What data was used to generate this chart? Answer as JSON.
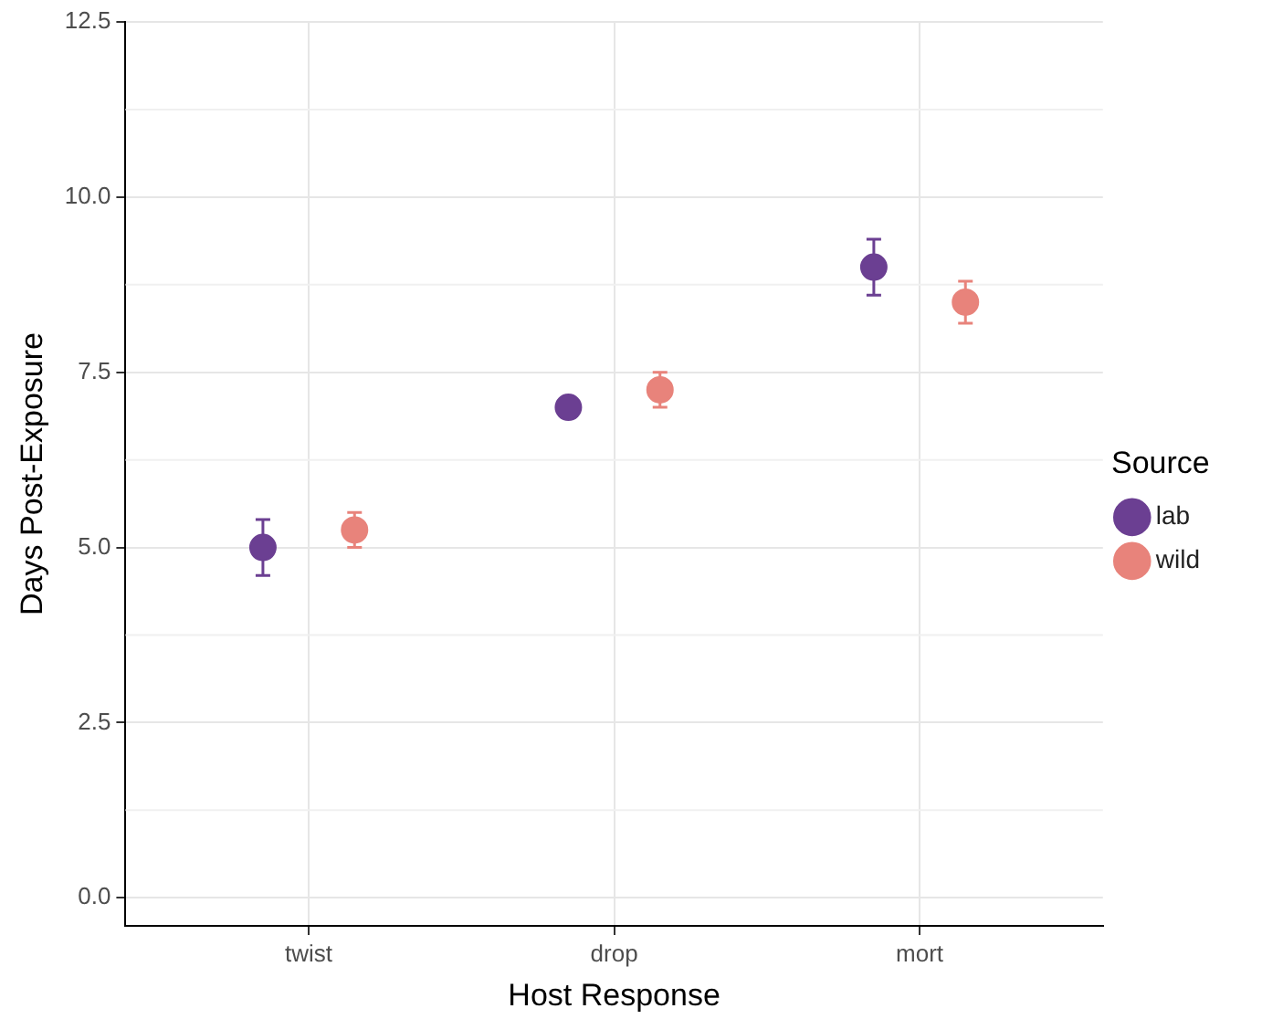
{
  "chart_data": {
    "type": "scatter",
    "xlabel": "Host Response",
    "ylabel": "Days Post-Exposure",
    "legend_title": "Source",
    "categories": [
      "twist",
      "drop",
      "mort"
    ],
    "series": [
      {
        "name": "lab",
        "color": "#6b3f92",
        "values": [
          5.0,
          7.0,
          9.0
        ],
        "errors": [
          0.4,
          null,
          0.4
        ]
      },
      {
        "name": "wild",
        "color": "#e8837b",
        "values": [
          5.25,
          7.25,
          8.5
        ],
        "errors": [
          0.25,
          0.25,
          0.3
        ]
      }
    ],
    "ylim": [
      -0.4,
      12.5
    ],
    "yticks": [
      {
        "value": 0,
        "label": "0.0"
      },
      {
        "value": 2.5,
        "label": "2.5"
      },
      {
        "value": 5,
        "label": "5.0"
      },
      {
        "value": 7.5,
        "label": "7.5"
      },
      {
        "value": 10,
        "label": "10.0"
      },
      {
        "value": 12.5,
        "label": "12.5"
      }
    ],
    "grid": true,
    "legend": "right",
    "marker": "circle"
  }
}
